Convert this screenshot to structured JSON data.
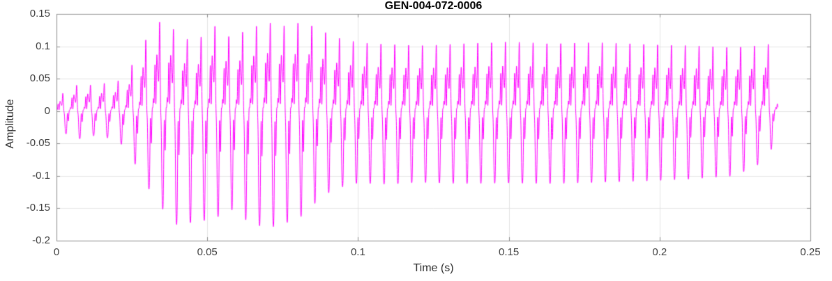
{
  "chart_data": {
    "type": "line",
    "title": "GEN-004-072-0006",
    "xlabel": "Time (s)",
    "ylabel": "Amplitude",
    "xlim": [
      0,
      0.25
    ],
    "ylim": [
      -0.2,
      0.15
    ],
    "xticks": [
      0,
      0.05,
      0.1,
      0.15,
      0.2,
      0.25
    ],
    "xtick_labels": [
      "0",
      "0.05",
      "0.1",
      "0.15",
      "0.2",
      "0.25"
    ],
    "yticks": [
      -0.2,
      -0.15,
      -0.1,
      -0.05,
      0,
      0.05,
      0.1,
      0.15
    ],
    "ytick_labels": [
      "-0.2",
      "-0.15",
      "-0.1",
      "-0.05",
      "0",
      "0.05",
      "0.1",
      "0.15"
    ],
    "grid": true,
    "legend_position": "none",
    "line_color": "#FF00FF",
    "line_width": 1,
    "background_color": "#FFFFFF",
    "grid_color": "#E3E3E3",
    "axis_color": "#8C8C8C",
    "tick_label_color": "#3C3C3C",
    "signal": {
      "description": "dense speech-like oscillatory waveform; quiet onset, loud burst 0.025-0.09 s with deepest troughs near -0.18, then steady periodic oscillation around +0.10 / -0.11 until ~0.239 s",
      "t_start": 0,
      "t_end": 0.2392,
      "f0_hz": 218,
      "harmonics": [
        {
          "n": 1,
          "amp": 1.0,
          "phase": 0.0
        },
        {
          "n": 2,
          "amp": 0.55,
          "phase": 2.4
        },
        {
          "n": 3,
          "amp": 0.35,
          "phase": 5.0
        },
        {
          "n": 4,
          "amp": 0.22,
          "phase": 1.1
        },
        {
          "n": 6,
          "amp": 0.28,
          "phase": 3.6
        },
        {
          "n": 9,
          "amp": 0.16,
          "phase": 0.7
        }
      ],
      "envelope": {
        "t": [
          0.0,
          0.004,
          0.008,
          0.012,
          0.016,
          0.02,
          0.024,
          0.028,
          0.032,
          0.036,
          0.04,
          0.046,
          0.052,
          0.058,
          0.064,
          0.07,
          0.076,
          0.082,
          0.088,
          0.094,
          0.1,
          0.11,
          0.12,
          0.135,
          0.15,
          0.165,
          0.18,
          0.195,
          0.21,
          0.225,
          0.233,
          0.237,
          0.2392
        ],
        "upper": [
          0.018,
          0.036,
          0.042,
          0.04,
          0.043,
          0.045,
          0.062,
          0.098,
          0.128,
          0.145,
          0.118,
          0.106,
          0.133,
          0.112,
          0.128,
          0.137,
          0.131,
          0.138,
          0.124,
          0.112,
          0.106,
          0.103,
          0.101,
          0.104,
          0.107,
          0.104,
          0.106,
          0.103,
          0.101,
          0.098,
          0.101,
          0.104,
          0.015
        ],
        "lower": [
          -0.018,
          -0.04,
          -0.043,
          -0.038,
          -0.041,
          -0.043,
          -0.065,
          -0.098,
          -0.132,
          -0.156,
          -0.176,
          -0.171,
          -0.167,
          -0.152,
          -0.172,
          -0.181,
          -0.173,
          -0.161,
          -0.131,
          -0.118,
          -0.111,
          -0.113,
          -0.11,
          -0.112,
          -0.111,
          -0.112,
          -0.11,
          -0.108,
          -0.105,
          -0.1,
          -0.082,
          -0.06,
          -0.01
        ]
      }
    }
  }
}
